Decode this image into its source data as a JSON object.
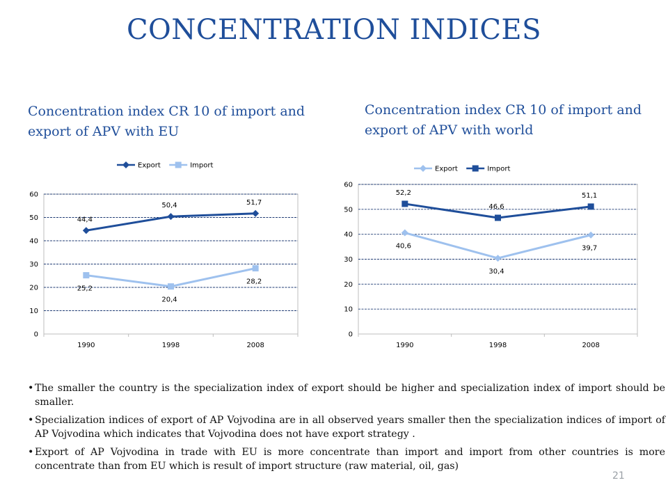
{
  "slide": {
    "title": "CONCENTRATION INDICES",
    "page_number": "21",
    "accent_color": "#1f4e9a"
  },
  "headings": {
    "left": "Concentration index CR 10 of import and export of APV with EU",
    "right": "Concentration index CR 10 of import and export of APV with world"
  },
  "notes": [
    "The smaller the country is the specialization index of export should be higher and specialization index of import should be smaller.",
    "Specialization indices of export of AP Vojvodina are in all observed years smaller then the specialization indices of import of AP Vojvodina which indicates that Vojvodina does not have export strategy .",
    "Export of AP Vojvodina in trade with EU is more concentrate than import and import from other countries is more concentrate than from EU which is result of import structure (raw material, oil, gas)"
  ],
  "chart_data": [
    {
      "type": "line",
      "x": [
        "1990",
        "1998",
        "2008"
      ],
      "ylim": [
        0,
        60
      ],
      "yticks": [
        0,
        10,
        20,
        30,
        40,
        50,
        60
      ],
      "grid": true,
      "legend": "top",
      "series": [
        {
          "name": "Export",
          "values": [
            44.4,
            50.4,
            51.7
          ],
          "labels": [
            "44,4",
            "50,4",
            "51,7"
          ],
          "color": "#1f4e9a",
          "marker": "diamond",
          "label_pos": "above"
        },
        {
          "name": "Import",
          "values": [
            25.2,
            20.4,
            28.2
          ],
          "labels": [
            "25,2",
            "20,4",
            "28,2"
          ],
          "color": "#9ec1ee",
          "marker": "square",
          "label_pos": "below"
        }
      ]
    },
    {
      "type": "line",
      "x": [
        "1990",
        "1998",
        "2008"
      ],
      "ylim": [
        0,
        60
      ],
      "yticks": [
        0,
        10,
        20,
        30,
        40,
        50,
        60
      ],
      "grid": true,
      "legend": "top",
      "series": [
        {
          "name": "Export",
          "values": [
            40.6,
            30.4,
            39.7
          ],
          "labels": [
            "40,6",
            "30,4",
            "39,7"
          ],
          "color": "#9ec1ee",
          "marker": "diamond",
          "label_pos": "below"
        },
        {
          "name": "Import",
          "values": [
            52.2,
            46.6,
            51.1
          ],
          "labels": [
            "52,2",
            "46,6",
            "51,1"
          ],
          "color": "#1f4e9a",
          "marker": "square",
          "label_pos": "above"
        }
      ]
    }
  ]
}
